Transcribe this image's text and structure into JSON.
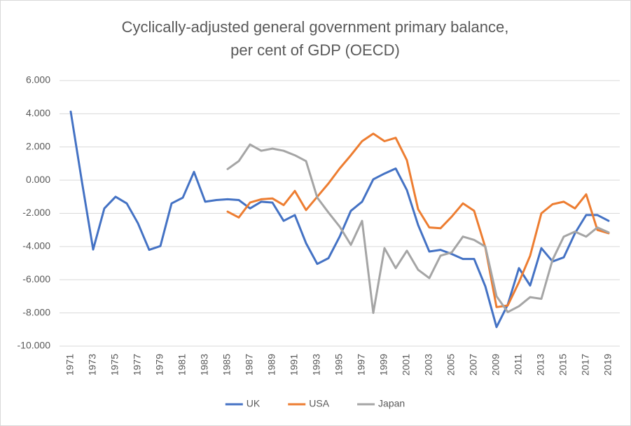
{
  "chart_data": {
    "type": "line",
    "title": [
      "Cyclically-adjusted general government primary balance,",
      "per cent of GDP (OECD)"
    ],
    "categories": [
      "1971",
      null,
      "1973",
      null,
      "1975",
      null,
      "1977",
      null,
      "1979",
      null,
      "1981",
      null,
      "1983",
      null,
      "1985",
      null,
      "1987",
      null,
      "1989",
      null,
      "1991",
      null,
      "1993",
      null,
      "1995",
      null,
      "1997",
      null,
      "1999",
      null,
      "2001",
      null,
      "2003",
      null,
      "2005",
      null,
      "2007",
      null,
      "2009",
      null,
      "2011",
      null,
      "2013",
      null,
      "2015",
      null,
      "2017",
      null,
      "2019"
    ],
    "series": [
      {
        "name": "UK",
        "color": "#4472c4",
        "values": [
          4.13,
          -0.1,
          -4.18,
          -1.7,
          -1.0,
          -1.4,
          -2.6,
          -4.2,
          -3.97,
          -1.4,
          -1.06,
          0.5,
          -1.3,
          -1.2,
          -1.15,
          -1.2,
          -1.7,
          -1.3,
          -1.35,
          -2.45,
          -2.1,
          -3.8,
          -5.05,
          -4.7,
          -3.4,
          -1.85,
          -1.3,
          0.05,
          0.4,
          0.7,
          -0.6,
          -2.7,
          -4.3,
          -4.2,
          -4.45,
          -4.75,
          -4.75,
          -6.4,
          -8.85,
          -7.5,
          -5.3,
          -6.35,
          -4.1,
          -4.9,
          -4.65,
          -3.2,
          -2.1,
          -2.1,
          -2.45
        ]
      },
      {
        "name": "USA",
        "color": "#ed7d31",
        "values": [
          null,
          null,
          null,
          null,
          null,
          null,
          null,
          null,
          null,
          null,
          null,
          null,
          null,
          null,
          -1.9,
          -2.25,
          -1.35,
          -1.15,
          -1.1,
          -1.5,
          -0.65,
          -1.8,
          -1.0,
          -0.2,
          0.7,
          1.5,
          2.35,
          2.8,
          2.35,
          2.55,
          1.2,
          -1.75,
          -2.85,
          -2.9,
          -2.2,
          -1.4,
          -1.85,
          -4.05,
          -7.65,
          -7.55,
          -6.15,
          -4.55,
          -2.0,
          -1.45,
          -1.3,
          -1.7,
          -0.85,
          -3.0,
          -3.2
        ]
      },
      {
        "name": "Japan",
        "color": "#a5a5a5",
        "values": [
          null,
          null,
          null,
          null,
          null,
          null,
          null,
          null,
          null,
          null,
          null,
          null,
          null,
          null,
          0.67,
          1.15,
          2.15,
          1.77,
          1.9,
          1.77,
          1.5,
          1.15,
          -1.05,
          -1.95,
          -2.8,
          -3.9,
          -2.45,
          -8.0,
          -4.1,
          -5.3,
          -4.25,
          -5.4,
          -5.9,
          -4.55,
          -4.35,
          -3.4,
          -3.6,
          -4.0,
          -7.0,
          -7.95,
          -7.6,
          -7.05,
          -7.15,
          -4.8,
          -3.4,
          -3.1,
          -3.4,
          -2.85,
          -3.15
        ]
      }
    ],
    "ylim": [
      -10,
      6
    ],
    "yticks": [
      {
        "value": -10,
        "label": "-10.000"
      },
      {
        "value": -8,
        "label": "-8.000"
      },
      {
        "value": -6,
        "label": "-6.000"
      },
      {
        "value": -4,
        "label": "-4.000"
      },
      {
        "value": -2,
        "label": "-2.000"
      },
      {
        "value": 0,
        "label": "0.000"
      },
      {
        "value": 2,
        "label": "2.000"
      },
      {
        "value": 4,
        "label": "4.000"
      },
      {
        "value": 6,
        "label": "6.000"
      }
    ],
    "grid": true,
    "legend": "bottom"
  }
}
